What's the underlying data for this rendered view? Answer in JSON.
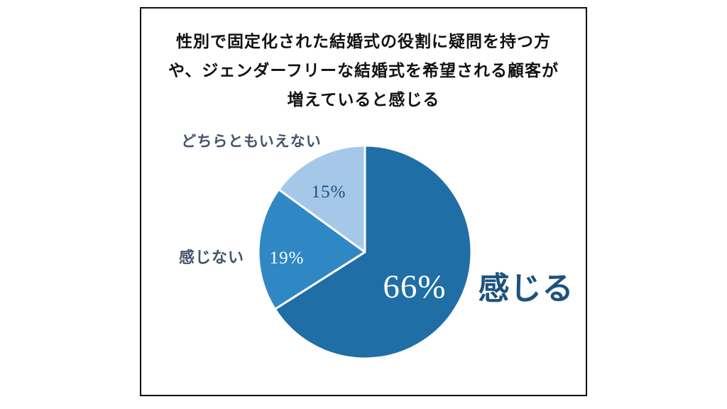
{
  "chart_data": {
    "type": "pie",
    "title_lines": [
      "性別で固定化された結婚式の役割に疑問を持つ方",
      "や、ジェンダーフリーな結婚式を希望される顧客が",
      "増えていると感じる"
    ],
    "start_angle_deg": 0,
    "direction": "clockwise",
    "legend_position": "labels-around-slices",
    "slices": [
      {
        "key": "agree",
        "label": "感じる",
        "value": 66,
        "pct_label": "66%",
        "color": "#1f6ea6"
      },
      {
        "key": "disagree",
        "label": "感じない",
        "value": 19,
        "pct_label": "19%",
        "color": "#2f88c4"
      },
      {
        "key": "neither",
        "label": "どちらともいえない",
        "value": 15,
        "pct_label": "15%",
        "color": "#a5c8e9"
      }
    ]
  }
}
